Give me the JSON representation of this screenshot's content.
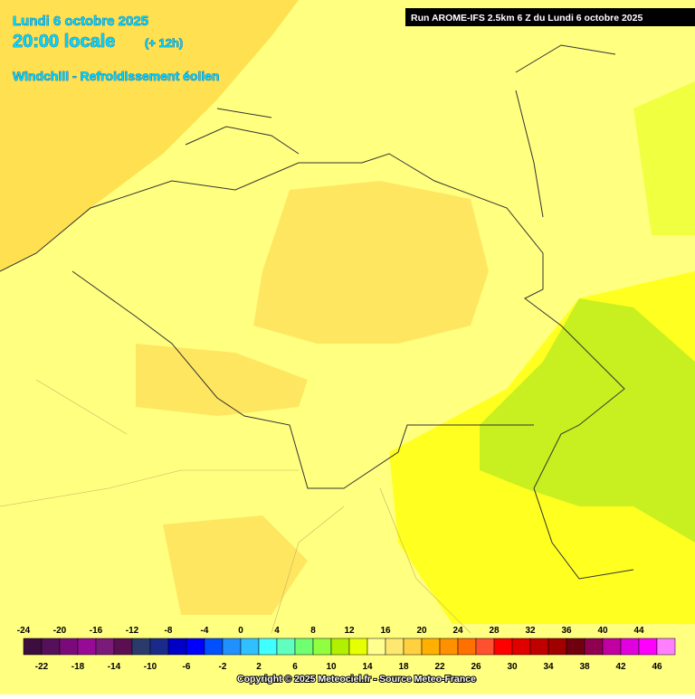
{
  "header": {
    "date": "Lundi 6 octobre 2025",
    "time": "20:00 locale",
    "lead": "(+ 12h)",
    "subtitle": "Windchill - Refroidissement éolien",
    "run": "Run AROME-IFS 2.5km 6 Z du Lundi 6 octobre 2025"
  },
  "legend": {
    "steps": [
      {
        "value": -24,
        "color": "#3d0d3d"
      },
      {
        "value": -22,
        "color": "#55105a"
      },
      {
        "value": -20,
        "color": "#7a0a7a"
      },
      {
        "value": -18,
        "color": "#960a96"
      },
      {
        "value": -16,
        "color": "#7a1a7a"
      },
      {
        "value": -14,
        "color": "#5a1050"
      },
      {
        "value": -12,
        "color": "#2a3a6a"
      },
      {
        "value": -10,
        "color": "#1a2a8a"
      },
      {
        "value": -8,
        "color": "#0000c8"
      },
      {
        "value": -6,
        "color": "#0000ff"
      },
      {
        "value": -4,
        "color": "#0050ff"
      },
      {
        "value": -2,
        "color": "#2090ff"
      },
      {
        "value": 0,
        "color": "#30c0ff"
      },
      {
        "value": 2,
        "color": "#40ffff"
      },
      {
        "value": 4,
        "color": "#60ffc0"
      },
      {
        "value": 6,
        "color": "#70ff70"
      },
      {
        "value": 8,
        "color": "#90ff40"
      },
      {
        "value": 10,
        "color": "#b0f000"
      },
      {
        "value": 12,
        "color": "#e8ff00"
      },
      {
        "value": 14,
        "color": "#ffff90"
      },
      {
        "value": 16,
        "color": "#ffe870"
      },
      {
        "value": 18,
        "color": "#ffd040"
      },
      {
        "value": 20,
        "color": "#ffb000"
      },
      {
        "value": 22,
        "color": "#ff9000"
      },
      {
        "value": 24,
        "color": "#ff7000"
      },
      {
        "value": 26,
        "color": "#ff5030"
      },
      {
        "value": 28,
        "color": "#ff0000"
      },
      {
        "value": 30,
        "color": "#e00000"
      },
      {
        "value": 32,
        "color": "#c00000"
      },
      {
        "value": 34,
        "color": "#a00000"
      },
      {
        "value": 36,
        "color": "#700010"
      },
      {
        "value": 38,
        "color": "#900050"
      },
      {
        "value": 40,
        "color": "#c000a0"
      },
      {
        "value": 42,
        "color": "#e000e0"
      },
      {
        "value": 44,
        "color": "#ff00ff"
      },
      {
        "value": 46,
        "color": "#ff80ff"
      }
    ]
  },
  "footer": {
    "copyright": "Copyright © 2025 Meteociel.fr - Source Meteo-France"
  }
}
